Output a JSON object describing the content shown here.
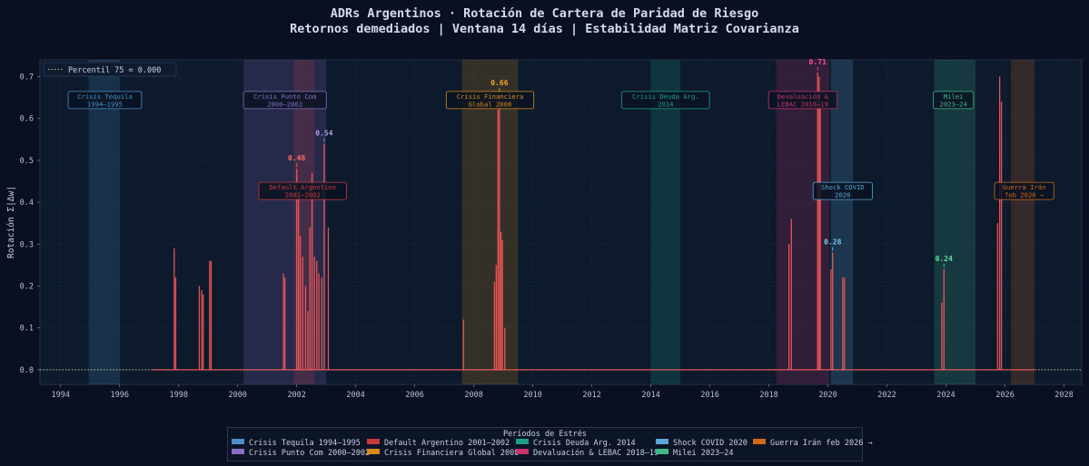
{
  "title_line1": "ADRs Argentinos  ·  Rotación de Cartera de Paridad de Riesgo",
  "title_line2": "Retornos demediados  |  Ventana 14 días  |  Estabilidad Matriz Covarianza",
  "chart_data": {
    "type": "line",
    "ylabel": "Rotación  Σ|Δw|",
    "xlim": [
      1993.3,
      2028.6
    ],
    "ylim": [
      -0.035,
      0.74
    ],
    "x_ticks": [
      1994,
      1996,
      1998,
      2000,
      2002,
      2004,
      2006,
      2008,
      2010,
      2012,
      2014,
      2016,
      2018,
      2020,
      2022,
      2024,
      2026,
      2028
    ],
    "y_ticks": [
      0.0,
      0.1,
      0.2,
      0.3,
      0.4,
      0.5,
      0.6,
      0.7
    ],
    "y_tick_labels": [
      "0.0",
      "0.1",
      "0.2",
      "0.3",
      "0.4",
      "0.5",
      "0.6",
      "0.7"
    ],
    "percentile_line": {
      "label": "Percentil 75  =  0.000",
      "value": 0.0
    },
    "series_start": 1997.1,
    "series_end": 2027.0,
    "spikes": [
      [
        1997.85,
        0.29
      ],
      [
        1997.9,
        0.22
      ],
      [
        1998.7,
        0.2
      ],
      [
        1998.78,
        0.19
      ],
      [
        1998.83,
        0.18
      ],
      [
        1999.05,
        0.26
      ],
      [
        1999.1,
        0.26
      ],
      [
        2001.55,
        0.23
      ],
      [
        2001.6,
        0.22
      ],
      [
        2002.0,
        0.48
      ],
      [
        2002.06,
        0.41
      ],
      [
        2002.12,
        0.32
      ],
      [
        2002.2,
        0.27
      ],
      [
        2002.3,
        0.2
      ],
      [
        2002.38,
        0.14
      ],
      [
        2002.45,
        0.34
      ],
      [
        2002.52,
        0.47
      ],
      [
        2002.6,
        0.27
      ],
      [
        2002.68,
        0.26
      ],
      [
        2002.75,
        0.23
      ],
      [
        2002.85,
        0.22
      ],
      [
        2002.93,
        0.54
      ],
      [
        2003.07,
        0.34
      ],
      [
        2007.65,
        0.12
      ],
      [
        2008.7,
        0.21
      ],
      [
        2008.76,
        0.25
      ],
      [
        2008.82,
        0.62
      ],
      [
        2008.87,
        0.66
      ],
      [
        2008.92,
        0.33
      ],
      [
        2008.97,
        0.31
      ],
      [
        2009.05,
        0.1
      ],
      [
        2018.68,
        0.3
      ],
      [
        2018.76,
        0.36
      ],
      [
        2019.65,
        0.71
      ],
      [
        2019.7,
        0.7
      ],
      [
        2019.74,
        0.64
      ],
      [
        2020.1,
        0.24
      ],
      [
        2020.16,
        0.28
      ],
      [
        2020.5,
        0.22
      ],
      [
        2020.56,
        0.22
      ],
      [
        2023.86,
        0.16
      ],
      [
        2023.93,
        0.24
      ],
      [
        2025.75,
        0.35
      ],
      [
        2025.82,
        0.7
      ],
      [
        2025.88,
        0.64
      ]
    ],
    "peak_labels": [
      {
        "x": 2002.0,
        "y": 0.48,
        "text": "0.48",
        "color": "#ff6b6b"
      },
      {
        "x": 2002.93,
        "y": 0.54,
        "text": "0.54",
        "color": "#b89ae6"
      },
      {
        "x": 2008.87,
        "y": 0.66,
        "text": "0.66",
        "color": "#f0a830"
      },
      {
        "x": 2019.65,
        "y": 0.71,
        "text": "0.71",
        "color": "#ff4d8d"
      },
      {
        "x": 2020.16,
        "y": 0.28,
        "text": "0.28",
        "color": "#7cc8f2"
      },
      {
        "x": 2023.93,
        "y": 0.24,
        "text": "0.24",
        "color": "#5fe0a0"
      }
    ],
    "periods": [
      {
        "name": "Crisis Tequila 1994–1995",
        "label": "Crisis Tequila\n1994–1995",
        "start": 1994.95,
        "end": 1996.0,
        "color": "#4a90c8",
        "label_y": 0.645,
        "label_x": 1995.5
      },
      {
        "name": "Crisis Punto Com 2000–2002",
        "label": "Crisis Punto Com\n2000–2002",
        "start": 2000.2,
        "end": 2003.0,
        "color": "#8a6fc4",
        "label_y": 0.645,
        "label_x": 2001.6
      },
      {
        "name": "Default Argentino 2001–2002",
        "label": "Default Argentino\n2001–2002",
        "start": 2001.9,
        "end": 2002.6,
        "color": "#c83a3a",
        "label_y": 0.428,
        "label_x": 2002.2
      },
      {
        "name": "Crisis Financiera Global 2008",
        "label": "Crisis Financiera\nGlobal 2008",
        "start": 2007.6,
        "end": 2009.5,
        "color": "#d68a1a",
        "label_y": 0.645,
        "label_x": 2008.55
      },
      {
        "name": "Crisis Deuda Arg. 2014",
        "label": "Crisis Deuda Arg.\n2014",
        "start": 2014.0,
        "end": 2015.0,
        "color": "#1f9e86",
        "label_y": 0.645,
        "label_x": 2014.5
      },
      {
        "name": "Devaluación & LEBAC 2018–19",
        "label": "Devaluación &\nLEBAC 2018–19",
        "start": 2018.25,
        "end": 2020.05,
        "color": "#c8336a",
        "label_y": 0.645,
        "label_x": 2019.15
      },
      {
        "name": "Shock COVID 2020",
        "label": "Shock COVID\n2020",
        "start": 2020.1,
        "end": 2020.85,
        "color": "#5aa8d8",
        "label_y": 0.428,
        "label_x": 2020.5
      },
      {
        "name": "Milei 2023–24",
        "label": "Milei\n2023–24",
        "start": 2023.6,
        "end": 2025.0,
        "color": "#3fb88a",
        "label_y": 0.645,
        "label_x": 2024.25
      },
      {
        "name": "Guerra Irán feb 2026 →",
        "label": "Guerra Irán\nfeb 2026 →",
        "start": 2026.2,
        "end": 2027.0,
        "color": "#d06a1a",
        "label_y": 0.428,
        "label_x": 2026.65
      }
    ]
  },
  "legend": {
    "title": "Períodos de Estrés",
    "items": [
      {
        "label": "Crisis Tequila 1994–1995",
        "color": "#4a90c8"
      },
      {
        "label": "Crisis Punto Com 2000–2002",
        "color": "#8a6fc4"
      },
      {
        "label": "Default Argentino 2001–2002",
        "color": "#c83a3a"
      },
      {
        "label": "Crisis Financiera Global 2008",
        "color": "#d68a1a"
      },
      {
        "label": "Crisis Deuda Arg. 2014",
        "color": "#1f9e86"
      },
      {
        "label": "Devaluación & LEBAC 2018–19",
        "color": "#c8336a"
      },
      {
        "label": "Shock COVID 2020",
        "color": "#5aa8d8"
      },
      {
        "label": "Milei 2023–24",
        "color": "#3fb88a"
      },
      {
        "label": "Guerra Irán feb 2026 →",
        "color": "#d06a1a"
      }
    ]
  }
}
